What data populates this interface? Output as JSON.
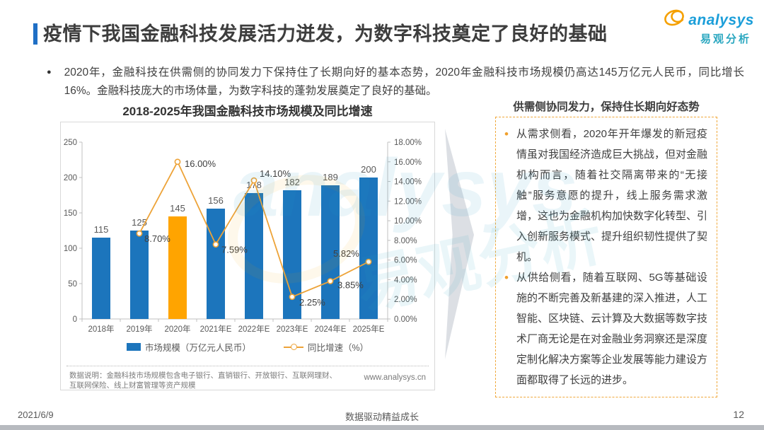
{
  "header": {
    "title": "疫情下我国金融科技发展活力迸发，为数字科技奠定了良好的基础",
    "logo": {
      "brand_en": "analysys",
      "brand_cn": "易观分析"
    }
  },
  "intro": {
    "bullet": "2020年，金融科技在供需侧的协同发力下保持住了长期向好的基本态势，2020年金融科技市场规模仍高达145万亿元人民币，同比增长16%。金融科技庞大的市场体量，为数字科技的蓬勃发展奠定了良好的基础。"
  },
  "chart_data": {
    "type": "bar+line",
    "title": "2018-2025年我国金融科技市场规模及同比增速",
    "categories": [
      "2018年",
      "2019年",
      "2020年",
      "2021年E",
      "2022年E",
      "2023年E",
      "2024年E",
      "2025年E"
    ],
    "series": [
      {
        "name": "市场规模（万亿元人民币）",
        "type": "bar",
        "values": [
          115,
          125,
          145,
          156,
          178,
          182,
          189,
          200
        ],
        "color": "#1c75bc",
        "highlight_index": 2,
        "highlight_color": "#ffa400"
      },
      {
        "name": "同比增速（%）",
        "type": "line",
        "values": [
          null,
          8.7,
          16.0,
          7.59,
          14.1,
          2.25,
          3.85,
          5.82
        ],
        "labels": [
          "",
          "8.70%",
          "16.00%",
          "7.59%",
          "14.10%",
          "2.25%",
          "3.85%",
          "5.82%"
        ],
        "color": "#eda338"
      }
    ],
    "left_axis": {
      "ticks": [
        0,
        50,
        100,
        150,
        200,
        250
      ],
      "max": 250
    },
    "right_axis": {
      "ticks": [
        "0.00%",
        "2.00%",
        "4.00%",
        "6.00%",
        "8.00%",
        "10.00%",
        "12.00%",
        "14.00%",
        "16.00%",
        "18.00%"
      ],
      "max": 18,
      "step": 2
    },
    "legend_position": "bottom",
    "grid": false
  },
  "chart_note": {
    "source": "数据说明：金融科技市场规模包含电子银行、直销银行、开放银行、互联网理财、互联网保险、线上财富管理等资产规模",
    "site": "www.analysys.cn"
  },
  "right_panel": {
    "title": "供需侧协同发力，保持住长期向好态势",
    "bullets": [
      "从需求侧看，2020年开年爆发的新冠疫情虽对我国经济造成巨大挑战，但对金融机构而言，随着社交隔离带来的“无接触”服务意愿的提升，线上服务需求激增，这也为金融机构加快数字化转型、引入创新服务模式、提升组织韧性提供了契机。",
      "从供给侧看，随着互联网、5G等基础设施的不断完善及新基建的深入推进，人工智能、区块链、云计算及大数据等数字技术厂商无论是在对金融业务洞察还是深度定制化解决方案等企业发展等能力建设方面都取得了长远的进步。"
    ]
  },
  "footer": {
    "date": "2021/6/9",
    "center": "数据驱动精益成长",
    "page": "12"
  },
  "colors": {
    "accent_blue": "#1f6fc5",
    "bar_blue": "#1c75bc",
    "bar_orange": "#ffa400",
    "line_orange": "#eda338",
    "panel_border": "#f0a83a",
    "logo_blue": "#1b9ed9",
    "logo_teal": "#2aa7c0"
  }
}
